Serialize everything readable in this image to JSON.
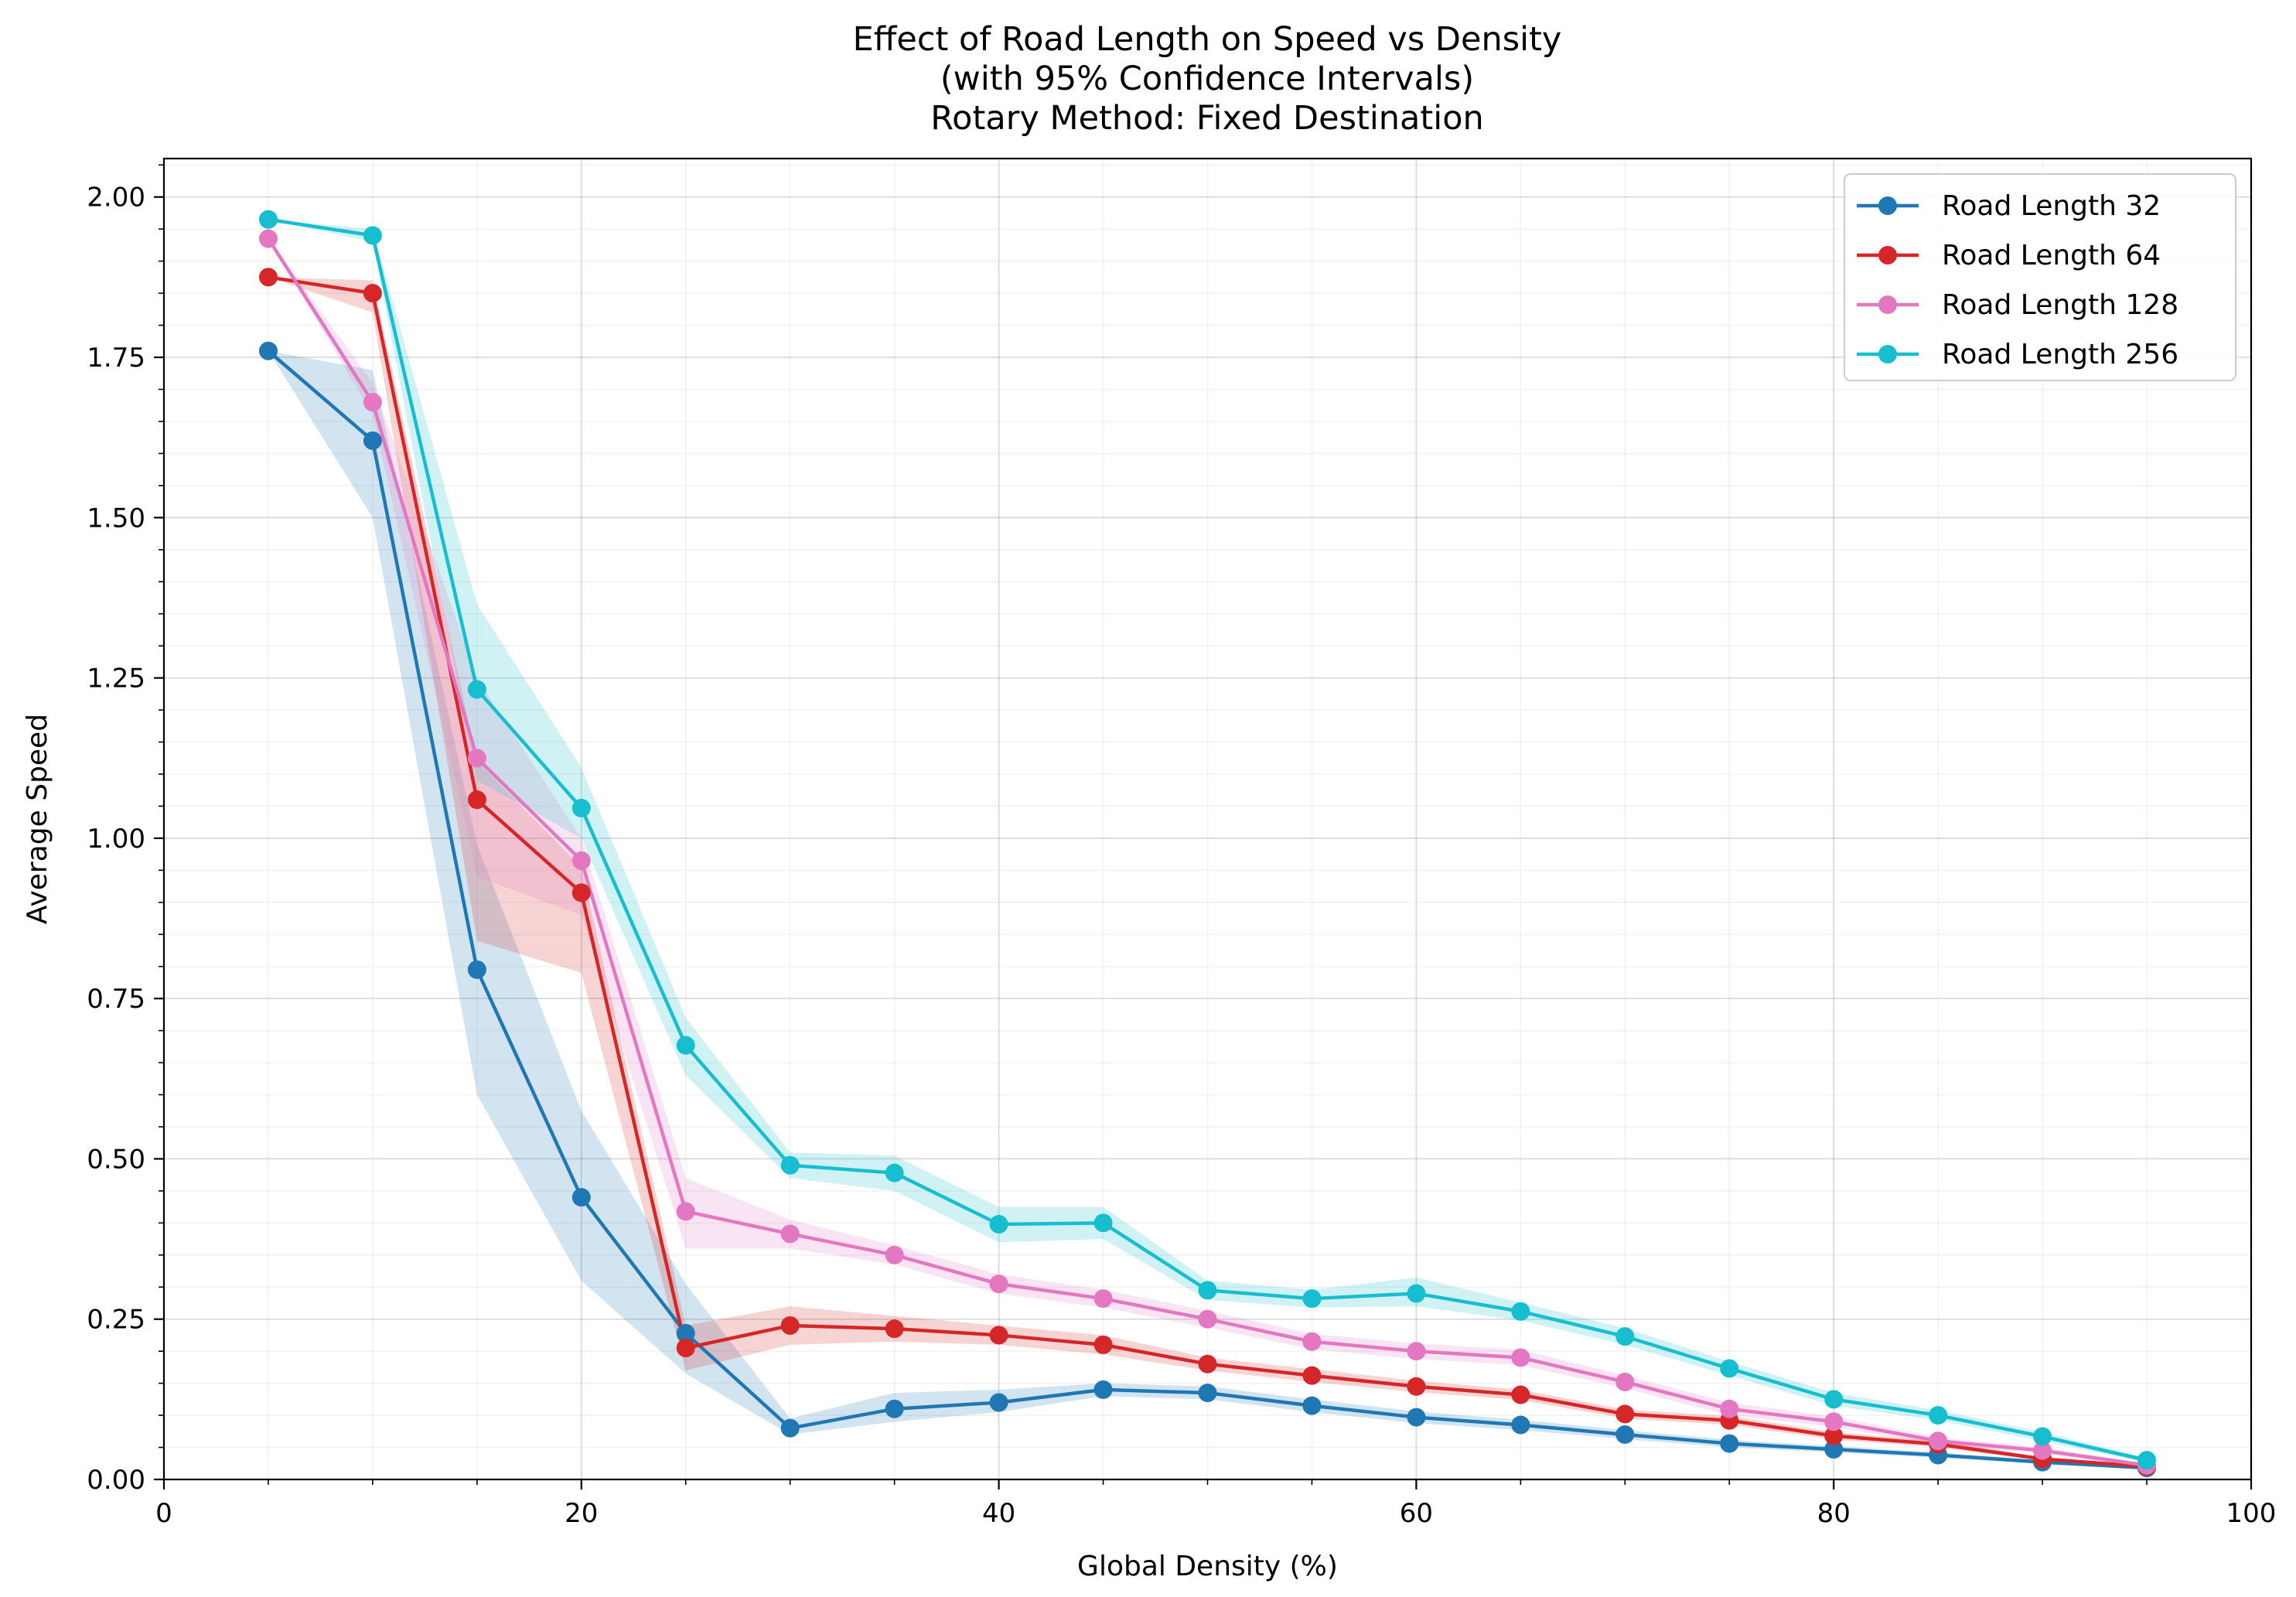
{
  "chart_data": {
    "type": "line",
    "title_lines": [
      "Effect of Road Length on Speed vs Density",
      "(with 95% Confidence Intervals)",
      "Rotary Method: Fixed Destination"
    ],
    "xlabel": "Global Density (%)",
    "ylabel": "Average Speed",
    "xlim": [
      0,
      100
    ],
    "ylim": [
      0,
      2.06
    ],
    "x_ticks": [
      0,
      20,
      40,
      60,
      80,
      100
    ],
    "y_ticks": [
      0.0,
      0.25,
      0.5,
      0.75,
      1.0,
      1.25,
      1.5,
      1.75,
      2.0
    ],
    "x_tick_labels": [
      "0",
      "20",
      "40",
      "60",
      "80",
      "100"
    ],
    "y_tick_labels": [
      "0.00",
      "0.25",
      "0.50",
      "0.75",
      "1.00",
      "1.25",
      "1.50",
      "1.75",
      "2.00"
    ],
    "grid": true,
    "minor_grid": true,
    "legend_position": "top-right",
    "x": [
      5,
      10,
      15,
      20,
      25,
      30,
      35,
      40,
      45,
      50,
      55,
      60,
      65,
      70,
      75,
      80,
      85,
      90,
      95
    ],
    "series": [
      {
        "name": "Road Length 32",
        "color": "#1f77b4",
        "values": [
          1.76,
          1.62,
          0.795,
          0.44,
          0.228,
          0.08,
          0.11,
          0.12,
          0.14,
          0.135,
          0.115,
          0.097,
          0.085,
          0.07,
          0.056,
          0.047,
          0.038,
          0.027,
          0.018
        ],
        "ci_lower": [
          1.76,
          1.5,
          0.6,
          0.31,
          0.165,
          0.07,
          0.09,
          0.105,
          0.13,
          0.125,
          0.105,
          0.088,
          0.077,
          0.063,
          0.05,
          0.042,
          0.034,
          0.024,
          0.016
        ],
        "ci_upper": [
          1.76,
          1.73,
          0.99,
          0.575,
          0.305,
          0.095,
          0.135,
          0.14,
          0.15,
          0.145,
          0.125,
          0.106,
          0.093,
          0.077,
          0.062,
          0.052,
          0.042,
          0.03,
          0.02
        ]
      },
      {
        "name": "Road Length 64",
        "color": "#d62728",
        "values": [
          1.875,
          1.85,
          1.06,
          0.915,
          0.205,
          0.24,
          0.235,
          0.225,
          0.21,
          0.18,
          0.162,
          0.145,
          0.132,
          0.102,
          0.092,
          0.068,
          0.055,
          0.032,
          0.02
        ],
        "ci_lower": [
          1.875,
          1.82,
          0.84,
          0.79,
          0.17,
          0.21,
          0.215,
          0.21,
          0.195,
          0.17,
          0.152,
          0.136,
          0.124,
          0.095,
          0.085,
          0.062,
          0.05,
          0.029,
          0.018
        ],
        "ci_upper": [
          1.875,
          1.87,
          1.12,
          0.955,
          0.24,
          0.27,
          0.255,
          0.24,
          0.225,
          0.19,
          0.172,
          0.154,
          0.14,
          0.109,
          0.099,
          0.074,
          0.06,
          0.035,
          0.022
        ]
      },
      {
        "name": "Road Length 128",
        "color": "#e377c2",
        "values": [
          1.935,
          1.68,
          1.125,
          0.965,
          0.418,
          0.383,
          0.35,
          0.305,
          0.282,
          0.25,
          0.215,
          0.2,
          0.19,
          0.152,
          0.11,
          0.09,
          0.06,
          0.045,
          0.022
        ],
        "ci_lower": [
          1.935,
          1.66,
          0.94,
          0.88,
          0.36,
          0.36,
          0.335,
          0.29,
          0.268,
          0.237,
          0.203,
          0.188,
          0.178,
          0.142,
          0.1,
          0.082,
          0.054,
          0.04,
          0.019
        ],
        "ci_upper": [
          1.935,
          1.71,
          1.25,
          1.0,
          0.47,
          0.405,
          0.365,
          0.32,
          0.296,
          0.263,
          0.227,
          0.212,
          0.202,
          0.162,
          0.12,
          0.098,
          0.066,
          0.05,
          0.025
        ]
      },
      {
        "name": "Road Length 256",
        "color": "#17becf",
        "values": [
          1.965,
          1.94,
          1.232,
          1.047,
          0.677,
          0.49,
          0.478,
          0.398,
          0.4,
          0.295,
          0.282,
          0.29,
          0.262,
          0.223,
          0.173,
          0.125,
          0.1,
          0.067,
          0.03
        ],
        "ci_lower": [
          1.965,
          1.93,
          1.09,
          1.0,
          0.63,
          0.47,
          0.45,
          0.37,
          0.375,
          0.28,
          0.268,
          0.27,
          0.248,
          0.21,
          0.162,
          0.115,
          0.092,
          0.06,
          0.026
        ],
        "ci_upper": [
          1.965,
          1.95,
          1.365,
          1.11,
          0.72,
          0.51,
          0.505,
          0.425,
          0.425,
          0.31,
          0.296,
          0.315,
          0.276,
          0.236,
          0.184,
          0.135,
          0.108,
          0.074,
          0.034
        ]
      }
    ]
  }
}
